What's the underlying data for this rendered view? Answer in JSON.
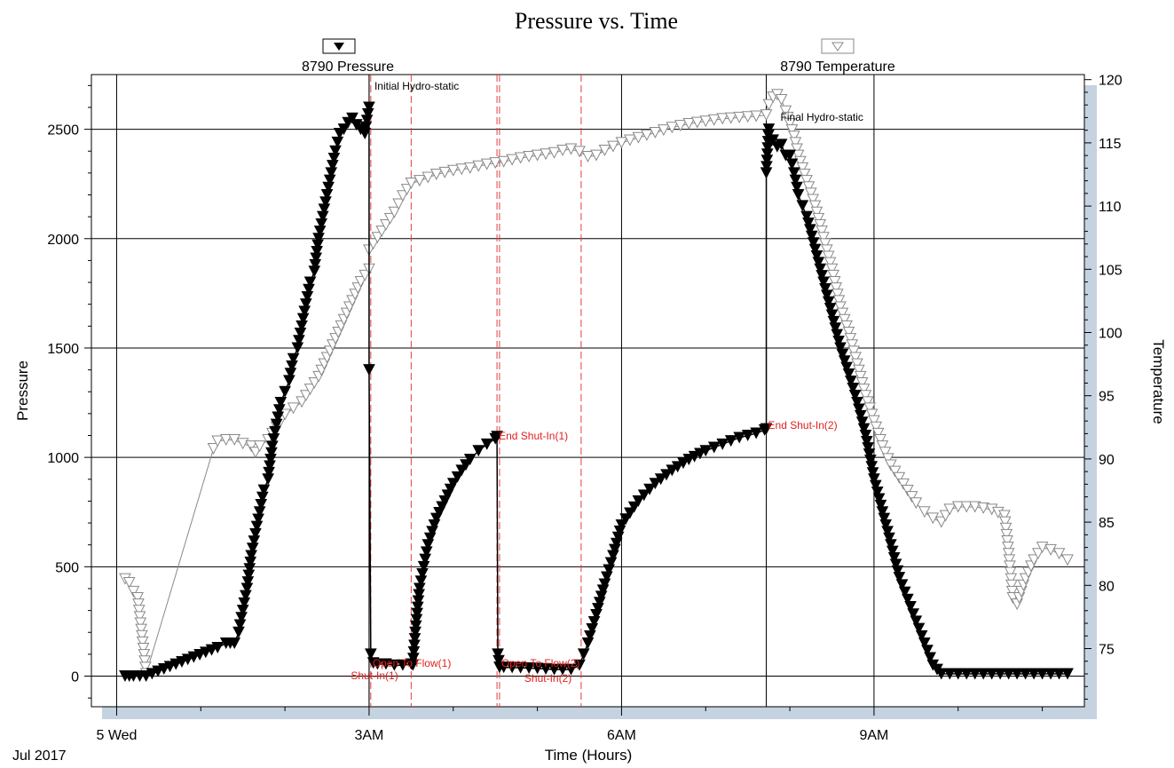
{
  "chart_data": {
    "type": "line",
    "title": "Pressure vs. Time",
    "xlabel": "Time (Hours)",
    "ylabel": "Pressure",
    "y2label": "Temperature",
    "x_unit": "hours from Jul 5 2017 00:00",
    "xlim": [
      -0.3,
      11.5
    ],
    "ylim": [
      -140,
      2750
    ],
    "y2lim": [
      70.4,
      120.4
    ],
    "x_major_ticks": [
      0,
      3,
      6,
      9
    ],
    "x_tick_labels": [
      "5 Wed",
      "3AM",
      "6AM",
      "9AM"
    ],
    "x_sub_label": "Jul 2017",
    "y_ticks": [
      0,
      500,
      1000,
      1500,
      2000,
      2500
    ],
    "y2_ticks": [
      75,
      80,
      85,
      90,
      95,
      100,
      105,
      110,
      115,
      120
    ],
    "grid": true,
    "series": [
      {
        "name": "8790 Pressure",
        "axis": "left",
        "marker": "filled-down-triangle",
        "color": "#000000",
        "points": [
          [
            0.1,
            0
          ],
          [
            0.15,
            0
          ],
          [
            0.2,
            0
          ],
          [
            0.35,
            0
          ],
          [
            1.2,
            130
          ],
          [
            1.3,
            150
          ],
          [
            1.35,
            150
          ],
          [
            1.4,
            150
          ],
          [
            1.45,
            200
          ],
          [
            1.5,
            300
          ],
          [
            1.55,
            400
          ],
          [
            1.6,
            550
          ],
          [
            1.65,
            650
          ],
          [
            1.7,
            750
          ],
          [
            1.75,
            850
          ],
          [
            1.8,
            900
          ],
          [
            1.85,
            1050
          ],
          [
            1.9,
            1150
          ],
          [
            1.95,
            1250
          ],
          [
            2.0,
            1300
          ],
          [
            2.05,
            1350
          ],
          [
            2.1,
            1450
          ],
          [
            2.15,
            1500
          ],
          [
            2.2,
            1600
          ],
          [
            2.25,
            1700
          ],
          [
            2.3,
            1800
          ],
          [
            2.35,
            1850
          ],
          [
            2.4,
            2000
          ],
          [
            2.45,
            2100
          ],
          [
            2.5,
            2200
          ],
          [
            2.55,
            2300
          ],
          [
            2.6,
            2400
          ],
          [
            2.65,
            2480
          ],
          [
            2.7,
            2500
          ],
          [
            2.75,
            2530
          ],
          [
            2.8,
            2550
          ],
          [
            2.85,
            2520
          ],
          [
            2.9,
            2500
          ],
          [
            2.95,
            2480
          ],
          [
            3.0,
            2600
          ],
          [
            3.0,
            1400
          ],
          [
            3.02,
            100
          ],
          [
            3.05,
            60
          ],
          [
            3.1,
            55
          ],
          [
            3.2,
            55
          ],
          [
            3.3,
            50
          ],
          [
            3.4,
            50
          ],
          [
            3.5,
            55
          ],
          [
            3.52,
            50
          ],
          [
            3.55,
            200
          ],
          [
            3.6,
            400
          ],
          [
            3.65,
            500
          ],
          [
            3.7,
            600
          ],
          [
            3.8,
            720
          ],
          [
            3.9,
            800
          ],
          [
            4.0,
            880
          ],
          [
            4.1,
            940
          ],
          [
            4.2,
            990
          ],
          [
            4.3,
            1030
          ],
          [
            4.4,
            1060
          ],
          [
            4.5,
            1085
          ],
          [
            4.52,
            1095
          ],
          [
            4.53,
            100
          ],
          [
            4.55,
            40
          ],
          [
            4.6,
            40
          ],
          [
            4.8,
            38
          ],
          [
            5.0,
            35
          ],
          [
            5.2,
            30
          ],
          [
            5.4,
            30
          ],
          [
            5.5,
            50
          ],
          [
            5.55,
            100
          ],
          [
            5.6,
            150
          ],
          [
            5.7,
            280
          ],
          [
            5.8,
            420
          ],
          [
            5.9,
            550
          ],
          [
            6.0,
            690
          ],
          [
            6.2,
            800
          ],
          [
            6.4,
            880
          ],
          [
            6.6,
            940
          ],
          [
            6.8,
            990
          ],
          [
            7.0,
            1030
          ],
          [
            7.2,
            1060
          ],
          [
            7.4,
            1090
          ],
          [
            7.6,
            1110
          ],
          [
            7.7,
            1125
          ],
          [
            7.72,
            1130
          ],
          [
            7.72,
            2300
          ],
          [
            7.75,
            2500
          ],
          [
            7.8,
            2450
          ],
          [
            7.85,
            2420
          ],
          [
            7.9,
            2430
          ],
          [
            7.95,
            2380
          ],
          [
            8.0,
            2380
          ],
          [
            8.05,
            2300
          ],
          [
            8.1,
            2200
          ],
          [
            8.15,
            2150
          ],
          [
            8.2,
            2100
          ],
          [
            8.3,
            1950
          ],
          [
            8.4,
            1800
          ],
          [
            8.5,
            1650
          ],
          [
            8.6,
            1500
          ],
          [
            8.7,
            1380
          ],
          [
            8.8,
            1250
          ],
          [
            8.9,
            1100
          ],
          [
            9.0,
            900
          ],
          [
            9.1,
            750
          ],
          [
            9.2,
            600
          ],
          [
            9.3,
            450
          ],
          [
            9.4,
            350
          ],
          [
            9.5,
            250
          ],
          [
            9.6,
            150
          ],
          [
            9.7,
            50
          ],
          [
            9.75,
            30
          ],
          [
            9.8,
            10
          ],
          [
            9.9,
            10
          ],
          [
            10.0,
            10
          ],
          [
            10.2,
            10
          ],
          [
            10.4,
            10
          ],
          [
            10.6,
            10
          ],
          [
            10.8,
            10
          ],
          [
            11.0,
            10
          ],
          [
            11.2,
            10
          ],
          [
            11.3,
            10
          ]
        ]
      },
      {
        "name": "8790 Temperature",
        "axis": "right",
        "marker": "open-down-triangle",
        "color": "#888888",
        "points": [
          [
            0.1,
            80.5
          ],
          [
            0.15,
            80.2
          ],
          [
            0.2,
            79.5
          ],
          [
            0.25,
            79.0
          ],
          [
            0.35,
            73
          ],
          [
            1.15,
            90.8
          ],
          [
            1.2,
            91.4
          ],
          [
            1.3,
            91.5
          ],
          [
            1.4,
            91.5
          ],
          [
            1.5,
            91.2
          ],
          [
            1.6,
            91.0
          ],
          [
            1.65,
            90.5
          ],
          [
            1.7,
            91.0
          ],
          [
            1.8,
            91.5
          ],
          [
            1.9,
            92.5
          ],
          [
            2.0,
            93.5
          ],
          [
            2.1,
            94.0
          ],
          [
            2.2,
            94.5
          ],
          [
            2.3,
            95.5
          ],
          [
            2.4,
            96.5
          ],
          [
            2.5,
            98.0
          ],
          [
            2.6,
            99.5
          ],
          [
            2.7,
            101.0
          ],
          [
            2.8,
            102.5
          ],
          [
            2.9,
            104.0
          ],
          [
            3.0,
            105.0
          ],
          [
            3.0,
            106.5
          ],
          [
            3.1,
            107.5
          ],
          [
            3.2,
            108.5
          ],
          [
            3.3,
            109.5
          ],
          [
            3.4,
            110.8
          ],
          [
            3.5,
            111.8
          ],
          [
            3.6,
            112.0
          ],
          [
            3.8,
            112.5
          ],
          [
            4.0,
            112.8
          ],
          [
            4.2,
            113.0
          ],
          [
            4.4,
            113.3
          ],
          [
            4.6,
            113.5
          ],
          [
            4.8,
            113.8
          ],
          [
            5.0,
            114.0
          ],
          [
            5.2,
            114.2
          ],
          [
            5.3,
            114.4
          ],
          [
            5.4,
            114.5
          ],
          [
            5.5,
            114.3
          ],
          [
            5.6,
            113.9
          ],
          [
            5.7,
            114.0
          ],
          [
            5.8,
            114.4
          ],
          [
            6.0,
            115.0
          ],
          [
            6.2,
            115.4
          ],
          [
            6.4,
            115.8
          ],
          [
            6.6,
            116.2
          ],
          [
            6.8,
            116.5
          ],
          [
            7.0,
            116.7
          ],
          [
            7.2,
            116.9
          ],
          [
            7.4,
            117.0
          ],
          [
            7.6,
            117.1
          ],
          [
            7.72,
            117.2
          ],
          [
            7.75,
            118.0
          ],
          [
            7.8,
            118.6
          ],
          [
            7.85,
            118.8
          ],
          [
            7.9,
            118.4
          ],
          [
            7.95,
            117.5
          ],
          [
            8.0,
            116.5
          ],
          [
            8.05,
            115.5
          ],
          [
            8.1,
            114.0
          ],
          [
            8.2,
            112.0
          ],
          [
            8.3,
            110.0
          ],
          [
            8.4,
            107.5
          ],
          [
            8.5,
            105.0
          ],
          [
            8.6,
            102.0
          ],
          [
            8.7,
            100.0
          ],
          [
            8.8,
            97.5
          ],
          [
            8.9,
            95.0
          ],
          [
            9.0,
            93.0
          ],
          [
            9.1,
            91.0
          ],
          [
            9.2,
            89.5
          ],
          [
            9.3,
            88.5
          ],
          [
            9.4,
            87.5
          ],
          [
            9.5,
            86.5
          ],
          [
            9.6,
            85.8
          ],
          [
            9.7,
            85.3
          ],
          [
            9.8,
            85.0
          ],
          [
            9.9,
            86.0
          ],
          [
            10.0,
            86.2
          ],
          [
            10.2,
            86.2
          ],
          [
            10.4,
            86.0
          ],
          [
            10.55,
            85.5
          ],
          [
            10.6,
            82.5
          ],
          [
            10.65,
            79.0
          ],
          [
            10.7,
            78.5
          ],
          [
            10.8,
            80.5
          ],
          [
            10.9,
            82.0
          ],
          [
            11.0,
            83.0
          ],
          [
            11.1,
            82.8
          ],
          [
            11.2,
            82.5
          ],
          [
            11.3,
            82.0
          ]
        ]
      }
    ],
    "event_lines": [
      {
        "x": 3.0,
        "label": "Initial Hydro-static",
        "color": "black"
      },
      {
        "x": 3.02,
        "label": "Open To Flow(1)",
        "color": "red"
      },
      {
        "x": 3.5,
        "label": "Shut-In(1)",
        "color": "red"
      },
      {
        "x": 4.52,
        "label": "End Shut-In(1)",
        "color": "red"
      },
      {
        "x": 4.55,
        "label": "Open To Flow(2)",
        "color": "red"
      },
      {
        "x": 5.52,
        "label": "Shut-In(2)",
        "color": "red"
      },
      {
        "x": 7.72,
        "label": "End Shut-In(2)",
        "color": "red"
      },
      {
        "x": 7.72,
        "label": "Final Hydro-static",
        "color": "black"
      }
    ]
  }
}
